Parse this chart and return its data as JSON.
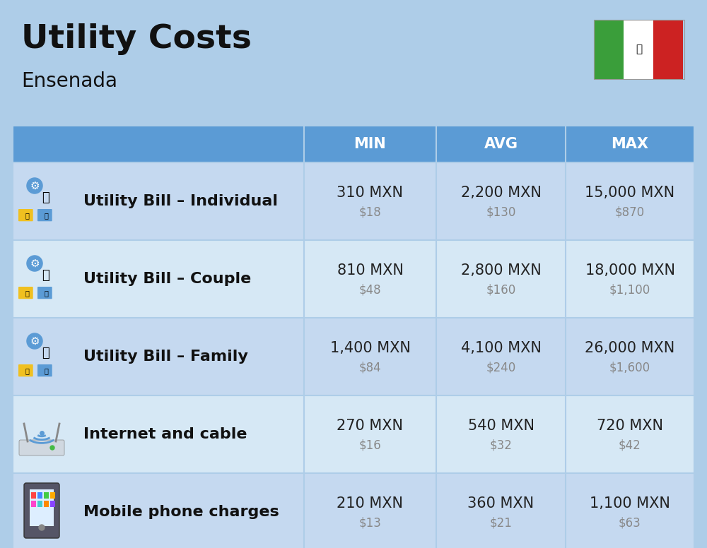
{
  "title": "Utility Costs",
  "subtitle": "Ensenada",
  "background_color": "#aecde8",
  "header_bg_color": "#5b9bd5",
  "row_bg_color_odd": "#c5d9f0",
  "row_bg_color_even": "#d6e8f5",
  "header_text_color": "#ffffff",
  "title_color": "#111111",
  "subtitle_color": "#111111",
  "label_color": "#111111",
  "value_color": "#222222",
  "usd_color": "#888888",
  "divider_color": "#aecde8",
  "header_labels": [
    "MIN",
    "AVG",
    "MAX"
  ],
  "rows": [
    {
      "label": "Utility Bill – Individual",
      "icon": "utility",
      "min_mxn": "310 MXN",
      "min_usd": "$18",
      "avg_mxn": "2,200 MXN",
      "avg_usd": "$130",
      "max_mxn": "15,000 MXN",
      "max_usd": "$870"
    },
    {
      "label": "Utility Bill – Couple",
      "icon": "utility",
      "min_mxn": "810 MXN",
      "min_usd": "$48",
      "avg_mxn": "2,800 MXN",
      "avg_usd": "$160",
      "max_mxn": "18,000 MXN",
      "max_usd": "$1,100"
    },
    {
      "label": "Utility Bill – Family",
      "icon": "utility",
      "min_mxn": "1,400 MXN",
      "min_usd": "$84",
      "avg_mxn": "4,100 MXN",
      "avg_usd": "$240",
      "max_mxn": "26,000 MXN",
      "max_usd": "$1,600"
    },
    {
      "label": "Internet and cable",
      "icon": "internet",
      "min_mxn": "270 MXN",
      "min_usd": "$16",
      "avg_mxn": "540 MXN",
      "avg_usd": "$32",
      "max_mxn": "720 MXN",
      "max_usd": "$42"
    },
    {
      "label": "Mobile phone charges",
      "icon": "mobile",
      "min_mxn": "210 MXN",
      "min_usd": "$13",
      "avg_mxn": "360 MXN",
      "avg_usd": "$21",
      "max_mxn": "1,100 MXN",
      "max_usd": "$63"
    }
  ],
  "flag_green": "#3a9e3a",
  "flag_white": "#ffffff",
  "flag_red": "#cc2222",
  "fig_width": 10.0,
  "fig_height": 7.76
}
